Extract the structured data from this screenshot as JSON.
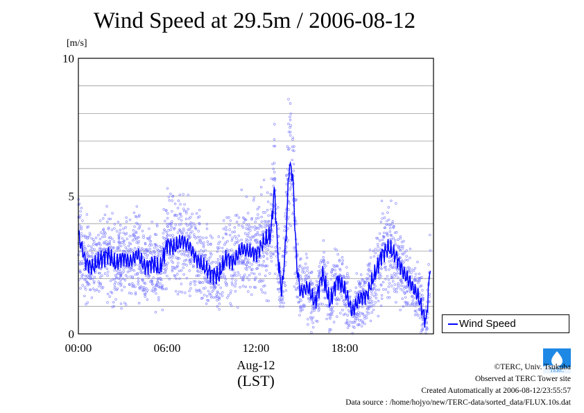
{
  "title": "Wind Speed at 29.5m / 2006-08-12",
  "unit_label": "[m/s]",
  "legend": {
    "series_label": "Wind Speed",
    "color": "#0000ff"
  },
  "axis": {
    "date_label": "Aug-12",
    "zone_label": "(LST)"
  },
  "credits": {
    "copyright": "©TERC, Univ. Tsukuba",
    "observed": "Observed at TERC Tower site",
    "created": "Created Automatically at 2006-08-12/23:55:57",
    "source": "Data source : /home/hojyo/new/TERC-data/sorted_data/FLUX.10s.dat"
  },
  "logo": {
    "icon": "terc-logo-icon",
    "text": "TERC",
    "color": "#1e88e5"
  },
  "chart_data": {
    "type": "line",
    "x_unit": "hours",
    "x_range": [
      0,
      24
    ],
    "ylim": [
      0,
      10
    ],
    "y_ticks": [
      "0",
      "5",
      "10"
    ],
    "x_ticks": [
      {
        "value": 0,
        "label": "00:00"
      },
      {
        "value": 6,
        "label": "06:00"
      },
      {
        "value": 12,
        "label": "12:00"
      },
      {
        "value": 18,
        "label": "18:00"
      }
    ],
    "grid": true,
    "legend_position": "bottom-right-outside",
    "series": [
      {
        "name": "Wind Speed",
        "style": "line with scatter of raw samples",
        "x": [
          0.0,
          0.5,
          1.0,
          1.5,
          2.0,
          2.5,
          3.0,
          3.5,
          4.0,
          4.5,
          5.0,
          5.5,
          6.0,
          6.5,
          7.0,
          7.5,
          8.0,
          8.5,
          9.0,
          9.5,
          10.0,
          10.5,
          11.0,
          11.5,
          12.0,
          12.5,
          13.0,
          13.25,
          13.5,
          13.75,
          14.0,
          14.25,
          14.5,
          14.75,
          15.0,
          15.5,
          16.0,
          16.5,
          17.0,
          17.5,
          18.0,
          18.5,
          19.0,
          19.5,
          20.0,
          20.5,
          21.0,
          21.5,
          22.0,
          22.5,
          23.0,
          23.5,
          23.8
        ],
        "y": [
          3.6,
          2.6,
          2.4,
          2.7,
          2.9,
          2.5,
          2.8,
          2.6,
          2.9,
          2.4,
          2.6,
          2.3,
          3.3,
          3.1,
          3.4,
          3.2,
          2.7,
          2.4,
          2.2,
          2.1,
          2.8,
          2.6,
          3.1,
          3.0,
          2.9,
          3.3,
          3.6,
          5.3,
          2.7,
          1.5,
          3.2,
          6.2,
          5.7,
          2.5,
          1.5,
          1.7,
          1.1,
          2.2,
          1.1,
          2.0,
          1.6,
          0.8,
          1.3,
          1.4,
          2.1,
          2.9,
          3.1,
          2.8,
          2.2,
          1.8,
          1.3,
          0.4,
          2.6
        ]
      }
    ]
  }
}
